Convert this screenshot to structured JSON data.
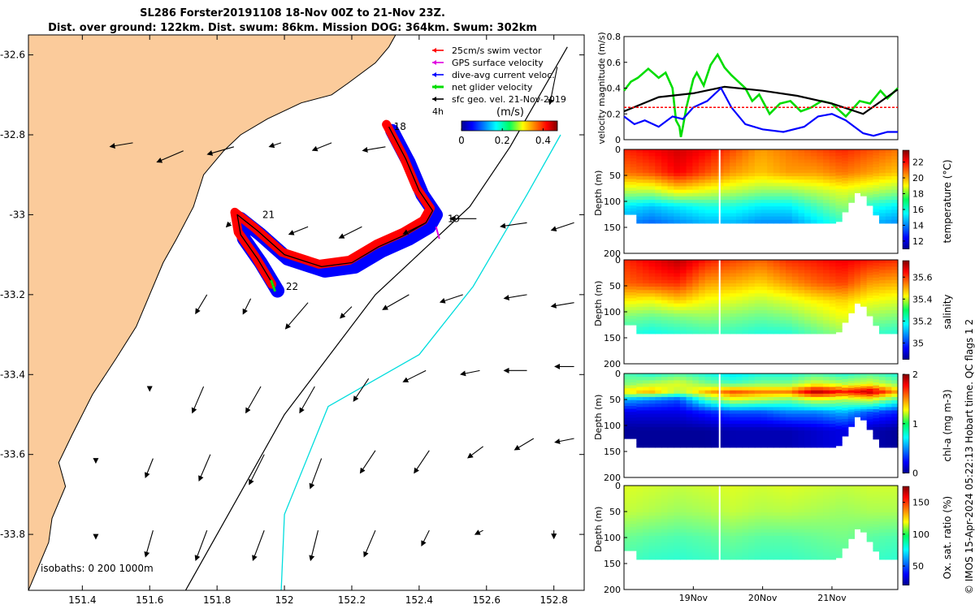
{
  "title": {
    "line1": "SL286 Forster20191108 18-Nov 00Z to 21-Nov 23Z.",
    "line2": "Dist. over ground: 122km. Dist. swum: 86km. Mission DOG: 364km. Swum: 302km"
  },
  "credit": "© IMOS 15-Apr-2024 05:22:13 Hobart time. QC flags 1  2",
  "colors": {
    "land": "#fbcb9b",
    "swim_vector": "#ff0000",
    "gps_velocity": "#e000e0",
    "dive_avg_current": "#0000ff",
    "net_glider": "#00dd00",
    "geo_velocity": "#000000",
    "isobath_200": "#000000",
    "isobath_1000": "#00dddd"
  },
  "chart_data": [
    {
      "type": "map",
      "x_ticks": [
        "151.4",
        "151.6",
        "151.8",
        "152",
        "152.2",
        "152.4",
        "152.6",
        "152.8"
      ],
      "y_ticks": [
        "-32.6",
        "-32.8",
        "-33",
        "-33.2",
        "-33.4",
        "-33.6",
        "-33.8"
      ],
      "xlim": [
        151.24,
        152.89
      ],
      "ylim": [
        -33.94,
        -32.55
      ],
      "legend": {
        "placement": "top-right",
        "entries": [
          "25cm/s swim vector",
          "GPS surface velocity",
          "dive-avg current veloc.",
          "net glider velocity",
          "sfc geo. vel. 21-Nov-2019"
        ],
        "interval_label": "4h"
      },
      "colorbar": {
        "label": "(m/s)",
        "ticks": [
          "0",
          "0.2",
          "0.4"
        ],
        "range": [
          0,
          0.47
        ]
      },
      "day_labels": [
        {
          "text": "18",
          "lon": 152.31,
          "lat": -32.78
        },
        {
          "text": "19",
          "lon": 152.47,
          "lat": -33.01
        },
        {
          "text": "21",
          "lon": 151.92,
          "lat": -33.0
        },
        {
          "text": "22",
          "lon": 151.99,
          "lat": -33.18
        }
      ],
      "isobaths_label": "isobaths: 0   200  1000m",
      "glider_track": [
        [
          152.31,
          -32.78
        ],
        [
          152.36,
          -32.86
        ],
        [
          152.4,
          -32.94
        ],
        [
          152.44,
          -32.99
        ],
        [
          152.42,
          -33.02
        ],
        [
          152.36,
          -33.05
        ],
        [
          152.28,
          -33.08
        ],
        [
          152.2,
          -33.12
        ],
        [
          152.11,
          -33.13
        ],
        [
          152.0,
          -33.1
        ],
        [
          151.92,
          -33.04
        ],
        [
          151.86,
          -33.0
        ],
        [
          151.87,
          -33.05
        ],
        [
          151.92,
          -33.11
        ],
        [
          151.97,
          -33.18
        ]
      ],
      "isobath_200": [
        [
          151.7,
          -33.95
        ],
        [
          152.0,
          -33.5
        ],
        [
          152.27,
          -33.2
        ],
        [
          152.55,
          -32.98
        ],
        [
          152.67,
          -32.83
        ],
        [
          152.84,
          -32.58
        ]
      ],
      "isobath_1000": [
        [
          151.99,
          -33.95
        ],
        [
          152.0,
          -33.75
        ],
        [
          152.13,
          -33.48
        ],
        [
          152.4,
          -33.35
        ],
        [
          152.56,
          -33.18
        ],
        [
          152.72,
          -32.95
        ],
        [
          152.82,
          -32.8
        ]
      ],
      "coast": [
        [
          151.24,
          -33.94
        ],
        [
          151.27,
          -33.88
        ],
        [
          151.3,
          -33.82
        ],
        [
          151.31,
          -33.76
        ],
        [
          151.35,
          -33.68
        ],
        [
          151.33,
          -33.62
        ],
        [
          151.37,
          -33.55
        ],
        [
          151.43,
          -33.45
        ],
        [
          151.5,
          -33.36
        ],
        [
          151.56,
          -33.28
        ],
        [
          151.6,
          -33.2
        ],
        [
          151.64,
          -33.12
        ],
        [
          151.68,
          -33.06
        ],
        [
          151.73,
          -32.98
        ],
        [
          151.76,
          -32.9
        ],
        [
          151.82,
          -32.84
        ],
        [
          151.87,
          -32.8
        ],
        [
          151.95,
          -32.76
        ],
        [
          152.05,
          -32.72
        ],
        [
          152.14,
          -32.7
        ],
        [
          152.19,
          -32.67
        ],
        [
          152.27,
          -32.62
        ],
        [
          152.31,
          -32.58
        ],
        [
          152.33,
          -32.55
        ]
      ],
      "geo_vectors": [
        [
          151.55,
          -32.82,
          -0.06,
          -0.01
        ],
        [
          151.7,
          -32.84,
          -0.07,
          -0.03
        ],
        [
          151.85,
          -32.83,
          -0.07,
          -0.02
        ],
        [
          151.99,
          -32.82,
          -0.03,
          -0.01
        ],
        [
          152.14,
          -32.82,
          -0.05,
          -0.02
        ],
        [
          152.3,
          -32.83,
          -0.06,
          -0.01
        ],
        [
          152.81,
          -32.63,
          -0.02,
          -0.1
        ],
        [
          151.84,
          -33.02,
          -0.01,
          -0.01
        ],
        [
          152.07,
          -33.03,
          -0.05,
          -0.02
        ],
        [
          152.23,
          -33.03,
          -0.06,
          -0.03
        ],
        [
          152.42,
          -33.02,
          -0.06,
          -0.03
        ],
        [
          152.57,
          -33.01,
          -0.07,
          -0.0
        ],
        [
          152.72,
          -33.02,
          -0.07,
          -0.01
        ],
        [
          152.86,
          -33.02,
          -0.06,
          -0.02
        ],
        [
          151.77,
          -33.2,
          -0.03,
          -0.05
        ],
        [
          151.9,
          -33.21,
          -0.02,
          -0.04
        ],
        [
          152.07,
          -33.22,
          -0.06,
          -0.07
        ],
        [
          152.2,
          -33.23,
          -0.03,
          -0.03
        ],
        [
          152.37,
          -33.2,
          -0.07,
          -0.04
        ],
        [
          152.53,
          -33.2,
          -0.06,
          -0.02
        ],
        [
          152.72,
          -33.2,
          -0.06,
          -0.01
        ],
        [
          152.86,
          -33.22,
          -0.06,
          -0.01
        ],
        [
          151.6,
          -33.43,
          0.0,
          -0.01
        ],
        [
          151.76,
          -33.43,
          -0.03,
          -0.07
        ],
        [
          151.93,
          -33.43,
          -0.04,
          -0.07
        ],
        [
          152.09,
          -33.43,
          -0.04,
          -0.07
        ],
        [
          152.25,
          -33.41,
          -0.04,
          -0.06
        ],
        [
          152.42,
          -33.39,
          -0.06,
          -0.03
        ],
        [
          152.58,
          -33.39,
          -0.05,
          -0.01
        ],
        [
          152.72,
          -33.39,
          -0.06,
          -0.0
        ],
        [
          152.86,
          -33.38,
          -0.05,
          -0.0
        ],
        [
          151.44,
          -33.61,
          0.0,
          -0.01
        ],
        [
          151.61,
          -33.61,
          -0.02,
          -0.05
        ],
        [
          151.78,
          -33.6,
          -0.03,
          -0.07
        ],
        [
          151.94,
          -33.6,
          -0.04,
          -0.08
        ],
        [
          152.11,
          -33.61,
          -0.03,
          -0.08
        ],
        [
          152.27,
          -33.59,
          -0.04,
          -0.06
        ],
        [
          152.43,
          -33.59,
          -0.04,
          -0.06
        ],
        [
          152.59,
          -33.58,
          -0.04,
          -0.03
        ],
        [
          152.74,
          -33.56,
          -0.05,
          -0.03
        ],
        [
          152.86,
          -33.56,
          -0.05,
          -0.01
        ],
        [
          151.44,
          -33.8,
          0.0,
          -0.01
        ],
        [
          151.61,
          -33.79,
          -0.02,
          -0.07
        ],
        [
          151.77,
          -33.79,
          -0.03,
          -0.08
        ],
        [
          151.94,
          -33.79,
          -0.03,
          -0.08
        ],
        [
          152.1,
          -33.79,
          -0.02,
          -0.08
        ],
        [
          152.27,
          -33.79,
          -0.03,
          -0.07
        ],
        [
          152.43,
          -33.79,
          -0.02,
          -0.04
        ],
        [
          152.59,
          -33.79,
          -0.02,
          -0.01
        ],
        [
          152.8,
          -33.79,
          0.0,
          -0.02
        ]
      ]
    },
    {
      "type": "line",
      "ylabel": "velocity magnitude (m/s)",
      "ylim": [
        0,
        0.8
      ],
      "y_ticks": [
        "0",
        "0.2",
        "0.4",
        "0.6",
        "0.8"
      ],
      "x_range": [
        0,
        3.95
      ],
      "series": [
        {
          "key": "green",
          "x": [
            0,
            0.1,
            0.2,
            0.35,
            0.5,
            0.6,
            0.7,
            0.75,
            0.8,
            0.82,
            0.85,
            0.9,
            1.0,
            1.05,
            1.15,
            1.25,
            1.35,
            1.45,
            1.55,
            1.65,
            1.75,
            1.85,
            1.95,
            2.1,
            2.25,
            2.4,
            2.55,
            2.7,
            2.85,
            3.0,
            3.2,
            3.4,
            3.55,
            3.7,
            3.8,
            3.95
          ],
          "values": [
            0.38,
            0.45,
            0.48,
            0.55,
            0.48,
            0.52,
            0.4,
            0.15,
            0.1,
            0.02,
            0.1,
            0.25,
            0.47,
            0.52,
            0.42,
            0.58,
            0.66,
            0.56,
            0.5,
            0.45,
            0.4,
            0.3,
            0.35,
            0.2,
            0.28,
            0.3,
            0.22,
            0.25,
            0.3,
            0.28,
            0.18,
            0.3,
            0.28,
            0.38,
            0.32,
            0.4
          ]
        },
        {
          "key": "black",
          "x": [
            0,
            0.5,
            1.0,
            1.45,
            2.0,
            2.5,
            3.0,
            3.45,
            3.95
          ],
          "values": [
            0.22,
            0.33,
            0.36,
            0.41,
            0.38,
            0.34,
            0.28,
            0.2,
            0.39
          ]
        },
        {
          "key": "blue",
          "x": [
            0,
            0.15,
            0.3,
            0.5,
            0.7,
            0.85,
            1.0,
            1.2,
            1.4,
            1.55,
            1.75,
            2.0,
            2.3,
            2.6,
            2.8,
            3.0,
            3.2,
            3.45,
            3.6,
            3.8,
            3.95
          ],
          "values": [
            0.18,
            0.12,
            0.15,
            0.1,
            0.18,
            0.16,
            0.25,
            0.3,
            0.4,
            0.25,
            0.12,
            0.08,
            0.06,
            0.1,
            0.18,
            0.2,
            0.15,
            0.05,
            0.03,
            0.06,
            0.06
          ]
        },
        {
          "key": "red",
          "x": [
            0,
            3.95
          ],
          "values": [
            0.25,
            0.25
          ]
        }
      ]
    },
    {
      "type": "heatmap",
      "ylabel": "Depth (m)",
      "y_ticks": [
        "0",
        "50",
        "100",
        "150",
        "200"
      ],
      "ylim": [
        0,
        200
      ],
      "colorbar": {
        "label": "temperature (°C)",
        "ticks": [
          "12",
          "14",
          "16",
          "18",
          "20",
          "22"
        ],
        "range": [
          11,
          23.5
        ]
      },
      "layers": [
        {
          "d": 0,
          "values": [
            21.5,
            22,
            22.5,
            22,
            21,
            20,
            20.5,
            21,
            21.5,
            21,
            20.5
          ]
        },
        {
          "d": 45,
          "values": [
            20.5,
            21,
            22,
            21,
            20,
            19.5,
            20,
            20,
            20.5,
            20,
            19.5
          ]
        },
        {
          "d": 80,
          "values": [
            18,
            18,
            19,
            18.5,
            18,
            17.5,
            17.5,
            18,
            18.5,
            18,
            17.5
          ]
        },
        {
          "d": 110,
          "values": [
            15.5,
            15,
            15.5,
            16,
            16,
            15.5,
            15.5,
            16.5,
            17.5,
            16,
            15.5
          ]
        },
        {
          "d": 150,
          "values": [
            14,
            13.5,
            14,
            14.5,
            14.5,
            14,
            14,
            15,
            16,
            14.5,
            14
          ]
        }
      ]
    },
    {
      "type": "heatmap",
      "ylabel": "Depth (m)",
      "y_ticks": [
        "0",
        "50",
        "100",
        "150",
        "200"
      ],
      "ylim": [
        0,
        200
      ],
      "colorbar": {
        "label": "salinity",
        "ticks": [
          "35",
          "35.2",
          "35.4",
          "35.6"
        ],
        "range": [
          34.85,
          35.75
        ]
      },
      "layers": [
        {
          "d": 0,
          "values": [
            35.6,
            35.65,
            35.7,
            35.62,
            35.58,
            35.55,
            35.6,
            35.62,
            35.65,
            35.62,
            35.6
          ]
        },
        {
          "d": 45,
          "values": [
            35.55,
            35.58,
            35.6,
            35.5,
            35.48,
            35.45,
            35.5,
            35.55,
            35.58,
            35.5,
            35.48
          ]
        },
        {
          "d": 80,
          "values": [
            35.42,
            35.4,
            35.45,
            35.4,
            35.38,
            35.35,
            35.38,
            35.42,
            35.45,
            35.4,
            35.38
          ]
        },
        {
          "d": 110,
          "values": [
            35.3,
            35.28,
            35.3,
            35.32,
            35.3,
            35.28,
            35.3,
            35.35,
            35.4,
            35.32,
            35.3
          ]
        },
        {
          "d": 150,
          "values": [
            35.2,
            35.18,
            35.2,
            35.22,
            35.22,
            35.2,
            35.2,
            35.25,
            35.3,
            35.22,
            35.2
          ]
        }
      ]
    },
    {
      "type": "heatmap",
      "ylabel": "Depth (m)",
      "y_ticks": [
        "0",
        "50",
        "100",
        "150",
        "200"
      ],
      "ylim": [
        0,
        200
      ],
      "colorbar": {
        "label": "chl-a (mg m-3)",
        "ticks": [
          "0",
          "1",
          "2"
        ],
        "range": [
          0,
          2
        ]
      },
      "layers": [
        {
          "d": 0,
          "values": [
            0.9,
            0.8,
            0.9,
            0.8,
            0.7,
            0.8,
            0.8,
            0.9,
            0.8,
            0.9,
            0.8
          ]
        },
        {
          "d": 20,
          "values": [
            1.0,
            1.1,
            1.2,
            1.0,
            0.9,
            1.0,
            1.0,
            1.2,
            1.1,
            1.2,
            1.0
          ]
        },
        {
          "d": 35,
          "values": [
            1.3,
            1.4,
            1.1,
            1.4,
            1.6,
            1.5,
            1.5,
            1.9,
            1.7,
            1.9,
            1.4
          ]
        },
        {
          "d": 50,
          "values": [
            0.6,
            0.5,
            0.4,
            0.9,
            1.2,
            1.1,
            1.0,
            1.2,
            1.1,
            1.2,
            0.9
          ]
        },
        {
          "d": 75,
          "values": [
            0.2,
            0.2,
            0.2,
            0.3,
            0.4,
            0.4,
            0.5,
            0.5,
            0.6,
            0.4,
            0.3
          ]
        },
        {
          "d": 110,
          "values": [
            0.05,
            0.05,
            0.05,
            0.05,
            0.1,
            0.1,
            0.1,
            0.15,
            0.2,
            0.1,
            0.05
          ]
        }
      ]
    },
    {
      "type": "heatmap",
      "ylabel": "Depth (m)",
      "y_ticks": [
        "0",
        "50",
        "100",
        "150",
        "200"
      ],
      "ylim": [
        0,
        200
      ],
      "colorbar": {
        "label": "Ox. sat. ratio (%)",
        "ticks": [
          "50",
          "100",
          "150"
        ],
        "range": [
          20,
          175
        ]
      },
      "layers": [
        {
          "d": 0,
          "values": [
            112,
            110,
            108,
            110,
            112,
            110,
            112,
            110,
            108,
            110,
            110
          ]
        },
        {
          "d": 50,
          "values": [
            108,
            105,
            102,
            104,
            108,
            105,
            106,
            104,
            102,
            104,
            104
          ]
        },
        {
          "d": 100,
          "values": [
            95,
            92,
            90,
            92,
            95,
            92,
            92,
            94,
            96,
            92,
            90
          ]
        },
        {
          "d": 150,
          "values": [
            88,
            85,
            84,
            86,
            88,
            86,
            86,
            88,
            90,
            86,
            84
          ]
        }
      ],
      "x_ticks": [
        {
          "x": 1.0,
          "label": "19Nov"
        },
        {
          "x": 2.0,
          "label": "20Nov"
        },
        {
          "x": 3.0,
          "label": "21Nov"
        }
      ]
    }
  ]
}
